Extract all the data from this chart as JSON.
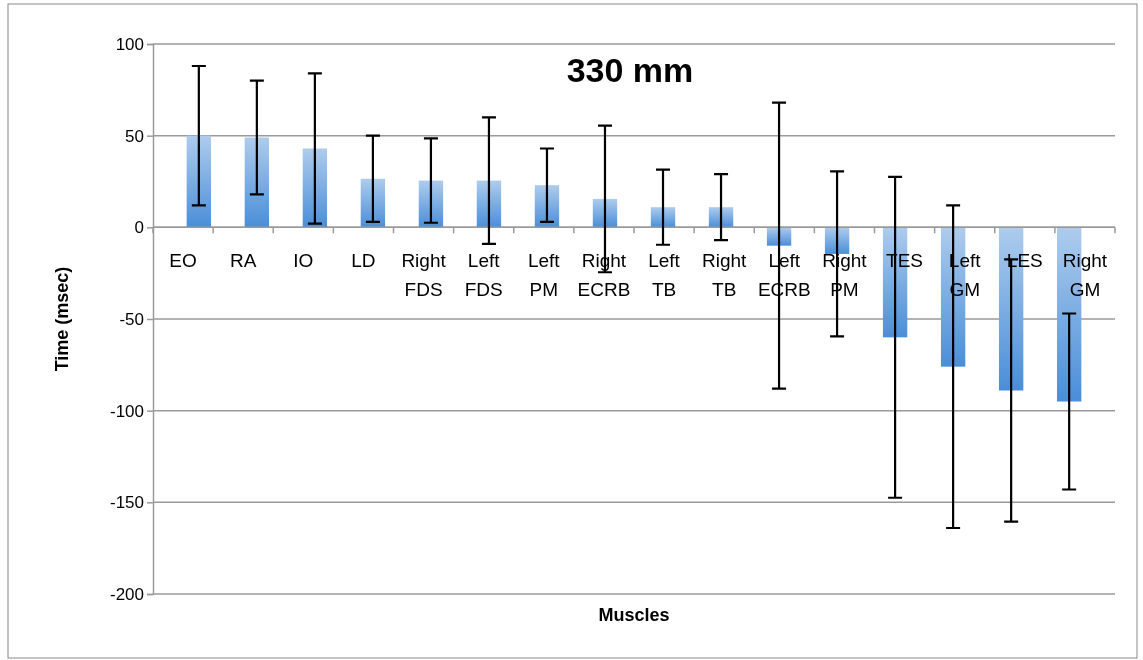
{
  "chart_data": {
    "type": "bar",
    "title": "330 mm",
    "xlabel": "Muscles",
    "ylabel": "Time (msec)",
    "categories": [
      "EO",
      "RA",
      "IO",
      "LD",
      "Right FDS",
      "Left FDS",
      "Left PM",
      "Right ECRB",
      "Left TB",
      "Right TB",
      "Left ECRB",
      "Right PM",
      "TES",
      "Left GM",
      "LES",
      "Right GM"
    ],
    "values": [
      50,
      49,
      43,
      26.5,
      25.5,
      25.5,
      23,
      15.5,
      11,
      11,
      -10,
      -14.5,
      -60,
      -76,
      -89,
      -95
    ],
    "errors": [
      38,
      31,
      41,
      23.5,
      23,
      34.5,
      20,
      40,
      20.5,
      18,
      78,
      45,
      87.5,
      88,
      71.5,
      48
    ],
    "color": "#4a8ed8",
    "ylim": [
      -200,
      100
    ],
    "yticks": [
      -200,
      -150,
      -100,
      -50,
      0,
      50,
      100
    ],
    "grid": "y"
  }
}
